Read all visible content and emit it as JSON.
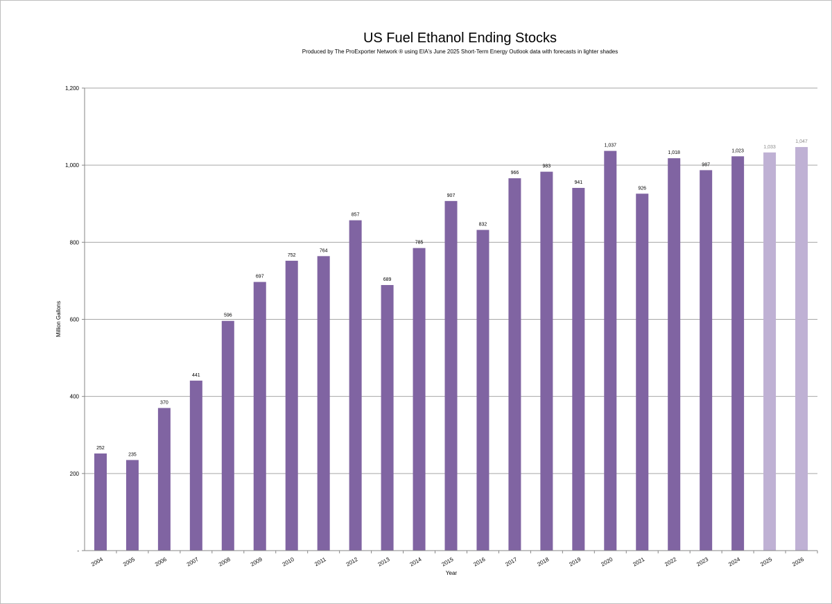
{
  "chart_data": {
    "type": "bar",
    "title": "US Fuel Ethanol Ending Stocks",
    "subtitle": "Produced by The ProExporter Network ® using EIA's June 2025 Short-Term Energy Outlook data with forecasts in lighter shades",
    "xlabel": "Year",
    "ylabel": "Million Gallons",
    "ylim": [
      0,
      1200
    ],
    "yticks": [
      0,
      200,
      400,
      600,
      800,
      1000,
      1200
    ],
    "ytick_labels": [
      "-",
      "200",
      "400",
      "600",
      "800",
      "1,000",
      "1,200"
    ],
    "grid": true,
    "categories": [
      "2004",
      "2005",
      "2006",
      "2007",
      "2008",
      "2009",
      "2010",
      "2011",
      "2012",
      "2013",
      "2014",
      "2015",
      "2016",
      "2017",
      "2018",
      "2019",
      "2020",
      "2021",
      "2022",
      "2023",
      "2024",
      "2025",
      "2026"
    ],
    "values": [
      252,
      235,
      370,
      441,
      596,
      697,
      752,
      764,
      857,
      689,
      785,
      907,
      832,
      966,
      983,
      941,
      1037,
      926,
      1018,
      987,
      1023,
      1033,
      1047
    ],
    "value_labels": [
      "252",
      "235",
      "370",
      "441",
      "596",
      "697",
      "752",
      "764",
      "857",
      "689",
      "785",
      "907",
      "832",
      "966",
      "983",
      "941",
      "1,037",
      "926",
      "1,018",
      "987",
      "1,023",
      "1,033",
      "1,047"
    ],
    "forecast": [
      false,
      false,
      false,
      false,
      false,
      false,
      false,
      false,
      false,
      false,
      false,
      false,
      false,
      false,
      false,
      false,
      false,
      false,
      false,
      false,
      false,
      true,
      true
    ],
    "colors": {
      "actual": "#8064a2",
      "forecast": "#bfb1d4",
      "grid": "#a6a6a6",
      "forecast_label": "#8a8a8a"
    }
  }
}
